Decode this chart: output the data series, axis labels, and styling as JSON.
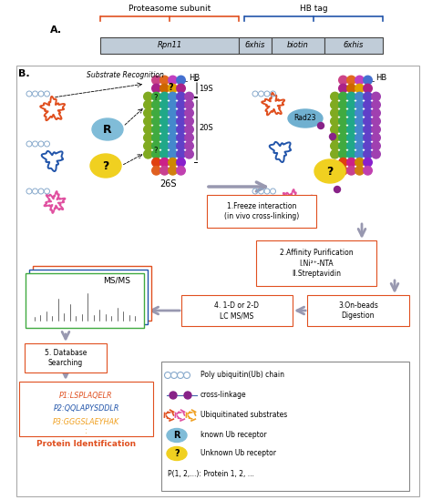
{
  "proteasome_subunit_label": "Proteasome subunit",
  "hb_tag_label": "HB tag",
  "panel_A": "A.",
  "panel_B": "B.",
  "box_labels": [
    "Rpn11",
    "6xhis",
    "biotin",
    "6xhis"
  ],
  "substrate_recognition": "Substrate Recognition",
  "label_19S": "19S",
  "label_20S": "20S",
  "label_26S": "26S",
  "label_HB": "HB",
  "label_Rad23": "Rad23",
  "label_MSMS": "MS/MS",
  "step1": "1.Freeze interaction\n(in vivo cross-linking)",
  "step2": "2.Affinity Purification\nI.Ni²⁺-NTA\nII.Streptavidin",
  "step3": "3.On-beads\nDigestion",
  "step4": "4. 1-D or 2-D\nLC MS/MS",
  "step5": "5. Database\nSearching",
  "p1": "P1:LSPLAQELR",
  "p2": "P2:QQLAPYSDDLR",
  "p3": "P3:GGGSLAEYHAK",
  "protein_id": "Protein Identification",
  "legend_items": [
    "Poly ubiquitin(Ub) chain",
    "cross-linkage",
    "Ubiquitinated substrates",
    "known Ub receptor",
    "Unknown Ub receptor",
    "P(1, 2,...): Protein 1, 2, ..."
  ],
  "c_red": "#e05020",
  "c_blue": "#2255aa",
  "c_orange": "#f0a020",
  "c_pink": "#e050a0",
  "c_gray_bg": "#c0ccd8",
  "c_step_border": "#e05020",
  "c_legend_border": "#888888",
  "c_arrow": "#9898b0",
  "c_ub_chain": "#88aacc",
  "c_purple": "#882288",
  "c_rad23": "#70b0d0",
  "c_r_oval": "#80bcd8",
  "c_q_oval": "#f0d020",
  "ring_20s": [
    "#80aa20",
    "#40aa40",
    "#20a888",
    "#4488cc",
    "#6040c8",
    "#a040b0"
  ],
  "ring_19s_top": [
    "#cc4488",
    "#e06820",
    "#c040c0",
    "#4470d0"
  ],
  "ring_19s_bot": [
    "#e06020",
    "#c84090",
    "#d08010",
    "#c040b0"
  ],
  "prot_19s_top_extra": [
    "#aa2288",
    "#cc6600",
    "#e0a000",
    "#aa2288"
  ],
  "prot_19s_bot_extra": [
    "#e04010",
    "#cc2088",
    "#cc8800",
    "#8820cc"
  ]
}
